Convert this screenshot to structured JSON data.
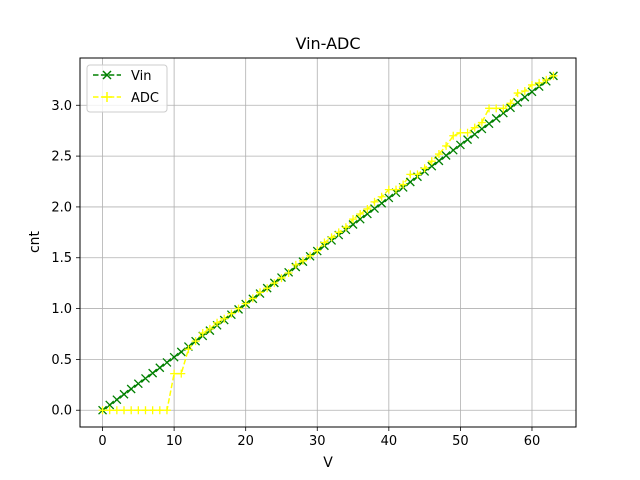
{
  "chart_data": {
    "type": "line",
    "title": "Vin-ADC",
    "xlabel": "V",
    "ylabel": "cnt",
    "xlim": [
      -3.15,
      66.15
    ],
    "ylim": [
      -0.165,
      3.465
    ],
    "xticks": [
      0,
      10,
      20,
      30,
      40,
      50,
      60
    ],
    "xtick_labels": [
      "0",
      "10",
      "20",
      "30",
      "40",
      "50",
      "60"
    ],
    "yticks": [
      0.0,
      0.5,
      1.0,
      1.5,
      2.0,
      2.5,
      3.0
    ],
    "ytick_labels": [
      "0.0",
      "0.5",
      "1.0",
      "1.5",
      "2.0",
      "2.5",
      "3.0"
    ],
    "grid": true,
    "legend_position": "top-left",
    "x": [
      0,
      1,
      2,
      3,
      4,
      5,
      6,
      7,
      8,
      9,
      10,
      11,
      12,
      13,
      14,
      15,
      16,
      17,
      18,
      19,
      20,
      21,
      22,
      23,
      24,
      25,
      26,
      27,
      28,
      29,
      30,
      31,
      32,
      33,
      34,
      35,
      36,
      37,
      38,
      39,
      40,
      41,
      42,
      43,
      44,
      45,
      46,
      47,
      48,
      49,
      50,
      51,
      52,
      53,
      54,
      55,
      56,
      57,
      58,
      59,
      60,
      61,
      62,
      63
    ],
    "series": [
      {
        "name": "Vin",
        "color": "#008000",
        "linestyle": "dashed",
        "marker": "x",
        "values": [
          0.0,
          0.052,
          0.104,
          0.157,
          0.209,
          0.261,
          0.313,
          0.365,
          0.418,
          0.47,
          0.522,
          0.574,
          0.626,
          0.679,
          0.731,
          0.783,
          0.835,
          0.887,
          0.94,
          0.992,
          1.044,
          1.096,
          1.148,
          1.201,
          1.253,
          1.305,
          1.357,
          1.409,
          1.462,
          1.514,
          1.566,
          1.618,
          1.67,
          1.723,
          1.775,
          1.827,
          1.879,
          1.931,
          1.984,
          2.036,
          2.088,
          2.14,
          2.192,
          2.245,
          2.297,
          2.349,
          2.401,
          2.453,
          2.506,
          2.558,
          2.61,
          2.662,
          2.714,
          2.767,
          2.819,
          2.871,
          2.923,
          2.975,
          3.028,
          3.08,
          3.132,
          3.184,
          3.236,
          3.289
        ]
      },
      {
        "name": "ADC",
        "color": "#ffff00",
        "linestyle": "dashed",
        "marker": "+",
        "values": [
          0.0,
          0.0,
          0.0,
          0.0,
          0.0,
          0.0,
          0.0,
          0.0,
          0.0,
          0.0,
          0.36,
          0.36,
          0.6,
          0.68,
          0.76,
          0.8,
          0.86,
          0.9,
          0.95,
          1.0,
          1.05,
          1.1,
          1.16,
          1.2,
          1.25,
          1.3,
          1.35,
          1.43,
          1.47,
          1.52,
          1.57,
          1.65,
          1.7,
          1.75,
          1.8,
          1.88,
          1.93,
          1.98,
          2.05,
          2.1,
          2.17,
          2.17,
          2.22,
          2.32,
          2.32,
          2.38,
          2.45,
          2.52,
          2.6,
          2.7,
          2.73,
          2.73,
          2.78,
          2.83,
          2.97,
          2.97,
          2.97,
          3.02,
          3.12,
          3.14,
          3.2,
          3.22,
          3.25,
          3.29
        ]
      }
    ]
  }
}
